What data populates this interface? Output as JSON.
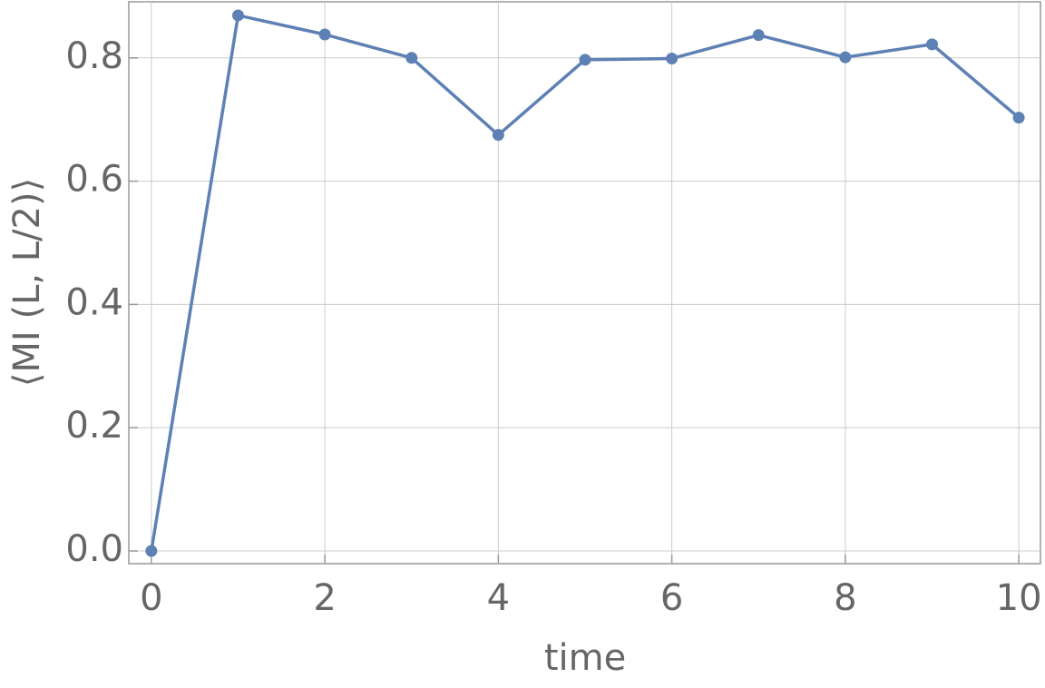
{
  "chart_data": {
    "type": "line",
    "x_label": "time",
    "y_label": "⟨MI (L, L/2)⟩",
    "series": [
      {
        "name": "MI",
        "color": "#5e81b5",
        "x": [
          0,
          1,
          2,
          3,
          4,
          5,
          6,
          7,
          8,
          9,
          10
        ],
        "values": [
          0,
          0.869,
          0.838,
          0.8,
          0.675,
          0.797,
          0.799,
          0.837,
          0.801,
          0.822,
          0.703
        ]
      }
    ],
    "xlim": [
      -0.26,
      10.25
    ],
    "ylim": [
      -0.0206,
      0.891
    ],
    "xticks": [
      0,
      2,
      4,
      6,
      8,
      10
    ],
    "yticks": [
      {
        "value": 0,
        "label": "0.0"
      },
      {
        "value": 0.2,
        "label": "0.2"
      },
      {
        "value": 0.4,
        "label": "0.4"
      },
      {
        "value": 0.6,
        "label": "0.6"
      },
      {
        "value": 0.8,
        "label": "0.8"
      }
    ],
    "grid": true
  }
}
